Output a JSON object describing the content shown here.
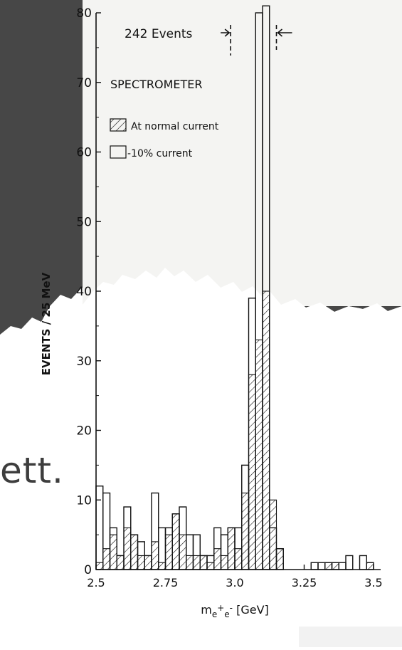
{
  "slide_fragment": "ett.",
  "chart_data": {
    "type": "bar",
    "title": "",
    "annotation": "242 Events",
    "legend_title": "SPECTROMETER",
    "legend": [
      {
        "label": "At normal current",
        "pattern": "hatched"
      },
      {
        "label": "-10% current",
        "pattern": "open"
      }
    ],
    "xlabel_parts": [
      "m",
      "e",
      "+",
      "e",
      "-",
      "[GeV]"
    ],
    "ylabel": "EVENTS / 25 MeV",
    "xlim": [
      2.5,
      3.5
    ],
    "ylim": [
      0,
      80
    ],
    "x_ticks": [
      {
        "value": 2.5,
        "label": "2.5"
      },
      {
        "value": 2.75,
        "label": "2.75"
      },
      {
        "value": 3.0,
        "label": "3.0"
      },
      {
        "value": 3.25,
        "label": "3.25"
      },
      {
        "value": 3.5,
        "label": "3.5"
      }
    ],
    "y_ticks": [
      0,
      10,
      20,
      30,
      40,
      50,
      60,
      70,
      80
    ],
    "arrow_markers": [
      2.985,
      3.15
    ],
    "bin_width_gev": 0.025,
    "bin_starts": [
      2.5,
      2.525,
      2.55,
      2.575,
      2.6,
      2.625,
      2.65,
      2.675,
      2.7,
      2.725,
      2.75,
      2.775,
      2.8,
      2.825,
      2.85,
      2.875,
      2.9,
      2.925,
      2.95,
      2.975,
      3.0,
      3.025,
      3.05,
      3.075,
      3.1,
      3.125,
      3.15,
      3.175,
      3.2,
      3.225,
      3.25,
      3.275,
      3.3,
      3.325,
      3.35,
      3.375,
      3.4,
      3.425,
      3.45,
      3.475
    ],
    "series": [
      {
        "name": "-10% current",
        "values": [
          12,
          11,
          6,
          2,
          9,
          5,
          4,
          2,
          11,
          6,
          6,
          8,
          9,
          5,
          5,
          2,
          2,
          6,
          5,
          6,
          6,
          15,
          39,
          80,
          81,
          6,
          3,
          0,
          0,
          0,
          0,
          1,
          1,
          1,
          1,
          1,
          2,
          0,
          2,
          1
        ]
      },
      {
        "name": "At normal current",
        "values": [
          1,
          3,
          5,
          2,
          6,
          5,
          2,
          2,
          4,
          1,
          5,
          8,
          5,
          2,
          2,
          2,
          1,
          3,
          2,
          6,
          3,
          11,
          28,
          33,
          40,
          10,
          3,
          0,
          0,
          0,
          0,
          0,
          0,
          1,
          1,
          0,
          0,
          0,
          0,
          1
        ]
      }
    ]
  }
}
